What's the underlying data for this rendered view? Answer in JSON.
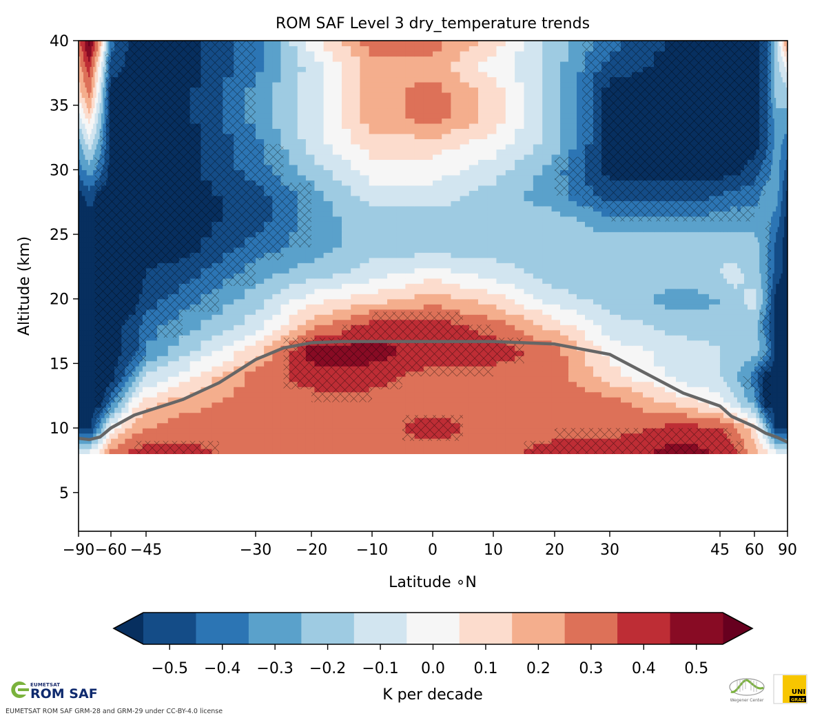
{
  "chart_data": {
    "type": "heatmap",
    "subtype": "filled-contour",
    "title": "ROM SAF Level 3 dry_temperature trends",
    "xlabel": "Latitude $^\\circ$N",
    "xlabel_display": "Latitude ∘N",
    "ylabel": "Altitude (km)",
    "xlim": [
      -90,
      90
    ],
    "ylim": [
      2,
      40
    ],
    "x_scale": "area-weighted (sine-like latitude)",
    "x_ticks": [
      -90,
      -60,
      -45,
      -30,
      -20,
      -10,
      0,
      10,
      20,
      30,
      45,
      60,
      90
    ],
    "x_tick_labels": [
      "−90",
      "−60",
      "−45",
      "−30",
      "−20",
      "−10",
      "0",
      "10",
      "20",
      "30",
      "45",
      "60",
      "90"
    ],
    "y_ticks": [
      5,
      10,
      15,
      20,
      25,
      30,
      35,
      40
    ],
    "y_tick_labels": [
      "5",
      "10",
      "15",
      "20",
      "25",
      "30",
      "35",
      "40"
    ],
    "data_altitude_range_km": [
      8,
      40
    ],
    "grid": false,
    "colorbar": {
      "label": "K per decade",
      "orientation": "horizontal",
      "placement": "bottom",
      "extend": "both",
      "boundaries": [
        -0.55,
        -0.45,
        -0.35,
        -0.25,
        -0.15,
        -0.05,
        0.05,
        0.15,
        0.25,
        0.35,
        0.45,
        0.55
      ],
      "ticks": [
        -0.5,
        -0.4,
        -0.3,
        -0.2,
        -0.1,
        0.0,
        0.1,
        0.2,
        0.3,
        0.4,
        0.5
      ],
      "tick_labels": [
        "−0.5",
        "−0.4",
        "−0.3",
        "−0.2",
        "−0.1",
        "0.0",
        "0.1",
        "0.2",
        "0.3",
        "0.4",
        "0.5"
      ],
      "colors": [
        "#144c87",
        "#2c75b4",
        "#5aa1cb",
        "#9ecbe2",
        "#d2e5f0",
        "#f6f6f6",
        "#fcdccd",
        "#f4ae8d",
        "#dd7158",
        "#be2d35",
        "#880b24"
      ],
      "under_color": "#072f5f",
      "over_color": "#67001f"
    },
    "tropopause_line": {
      "name": "tropopause",
      "color": "#666666",
      "lat": [
        -90,
        -80,
        -70,
        -60,
        -50,
        -40,
        -35,
        -30,
        -25,
        -20,
        -15,
        -10,
        0,
        10,
        20,
        25,
        30,
        35,
        40,
        45,
        50,
        60,
        70,
        80,
        90
      ],
      "alt_km": [
        9.2,
        9.1,
        9.3,
        10.0,
        11.0,
        12.2,
        13.5,
        15.3,
        16.2,
        16.6,
        16.7,
        16.7,
        16.7,
        16.7,
        16.5,
        16.1,
        15.7,
        14.2,
        12.7,
        11.7,
        10.9,
        10.1,
        9.6,
        9.3,
        8.9
      ]
    },
    "trend_field": {
      "description": "Approximate trend values (K/decade) read from filled contours on a coarse grid",
      "lat": [
        -90,
        -80,
        -70,
        -60,
        -50,
        -40,
        -30,
        -20,
        -10,
        0,
        10,
        20,
        30,
        40,
        50,
        60,
        70,
        80,
        90
      ],
      "alt_km": [
        8,
        10,
        12,
        14,
        16,
        18,
        20,
        22,
        24,
        26,
        28,
        30,
        32,
        34,
        36,
        38,
        40
      ],
      "values": [
        [
          -0.1,
          0.0,
          0.1,
          0.3,
          0.4,
          0.4,
          0.3,
          0.3,
          0.3,
          0.3,
          0.3,
          0.4,
          0.4,
          0.5,
          0.4,
          0.2,
          0.1,
          0.0,
          -0.1
        ],
        [
          -0.6,
          -0.6,
          -0.3,
          0.0,
          0.2,
          0.3,
          0.3,
          0.3,
          0.3,
          0.4,
          0.3,
          0.3,
          0.3,
          0.4,
          0.3,
          0.1,
          -0.2,
          -0.6,
          -0.6
        ],
        [
          -0.6,
          -0.6,
          -0.6,
          -0.4,
          0.0,
          0.2,
          0.3,
          0.3,
          0.3,
          0.3,
          0.3,
          0.3,
          0.3,
          0.1,
          -0.1,
          -0.3,
          -0.6,
          -0.6,
          -0.6
        ],
        [
          -0.6,
          -0.6,
          -0.6,
          -0.6,
          -0.3,
          0.0,
          0.3,
          0.4,
          0.4,
          0.3,
          0.3,
          0.3,
          0.1,
          -0.1,
          -0.2,
          -0.4,
          -0.6,
          -0.6,
          -0.6
        ],
        [
          -0.6,
          -0.6,
          -0.6,
          -0.6,
          -0.5,
          -0.2,
          0.1,
          0.5,
          0.5,
          0.4,
          0.4,
          0.3,
          0.0,
          -0.1,
          -0.2,
          -0.2,
          -0.3,
          -0.6,
          -0.6
        ],
        [
          -0.6,
          -0.6,
          -0.6,
          -0.6,
          -0.5,
          -0.3,
          -0.1,
          0.2,
          0.4,
          0.4,
          0.3,
          0.1,
          -0.1,
          -0.2,
          -0.2,
          -0.2,
          -0.4,
          -0.6,
          -0.6
        ],
        [
          -0.6,
          -0.6,
          -0.6,
          -0.6,
          -0.6,
          -0.4,
          -0.2,
          0.0,
          0.1,
          0.2,
          0.1,
          -0.1,
          -0.2,
          -0.3,
          -0.2,
          -0.1,
          -0.3,
          -0.6,
          -0.6
        ],
        [
          -0.6,
          -0.6,
          -0.6,
          -0.6,
          -0.6,
          -0.5,
          -0.3,
          -0.2,
          -0.1,
          0.0,
          -0.1,
          -0.2,
          -0.2,
          -0.2,
          -0.1,
          -0.2,
          -0.3,
          -0.5,
          -0.6
        ],
        [
          -0.6,
          -0.6,
          -0.6,
          -0.6,
          -0.6,
          -0.6,
          -0.4,
          -0.3,
          -0.2,
          -0.2,
          -0.2,
          -0.2,
          -0.2,
          -0.2,
          -0.2,
          -0.2,
          -0.3,
          -0.5,
          -0.6
        ],
        [
          -0.6,
          -0.6,
          -0.6,
          -0.6,
          -0.6,
          -0.6,
          -0.5,
          -0.3,
          -0.2,
          -0.2,
          -0.2,
          -0.2,
          -0.3,
          -0.3,
          -0.3,
          -0.3,
          -0.3,
          -0.4,
          -0.6
        ],
        [
          -0.6,
          -0.5,
          -0.6,
          -0.6,
          -0.6,
          -0.6,
          -0.5,
          -0.3,
          -0.1,
          -0.1,
          -0.2,
          -0.3,
          -0.5,
          -0.5,
          -0.4,
          -0.4,
          -0.3,
          -0.3,
          -0.6
        ],
        [
          -0.4,
          -0.3,
          -0.4,
          -0.6,
          -0.6,
          -0.6,
          -0.4,
          -0.2,
          0.0,
          0.0,
          -0.1,
          -0.3,
          -0.6,
          -0.6,
          -0.6,
          -0.5,
          -0.4,
          -0.3,
          -0.5
        ],
        [
          -0.3,
          -0.1,
          -0.3,
          -0.6,
          -0.6,
          -0.6,
          -0.4,
          -0.1,
          0.1,
          0.1,
          0.0,
          -0.2,
          -0.6,
          -0.6,
          -0.6,
          -0.6,
          -0.5,
          -0.3,
          -0.4
        ],
        [
          -0.1,
          0.1,
          -0.2,
          -0.6,
          -0.6,
          -0.6,
          -0.3,
          -0.1,
          0.2,
          0.3,
          0.1,
          -0.2,
          -0.6,
          -0.6,
          -0.6,
          -0.6,
          -0.5,
          -0.3,
          -0.3
        ],
        [
          0.1,
          0.3,
          -0.1,
          -0.6,
          -0.6,
          -0.6,
          -0.3,
          -0.1,
          0.2,
          0.3,
          0.1,
          -0.2,
          -0.6,
          -0.6,
          -0.6,
          -0.6,
          -0.5,
          -0.2,
          -0.2
        ],
        [
          0.2,
          0.4,
          0.0,
          -0.5,
          -0.6,
          -0.6,
          -0.4,
          -0.1,
          0.2,
          0.2,
          0.0,
          -0.2,
          -0.5,
          -0.6,
          -0.6,
          -0.6,
          -0.5,
          -0.2,
          0.0
        ],
        [
          0.3,
          0.6,
          0.2,
          -0.4,
          -0.6,
          -0.6,
          -0.4,
          0.0,
          0.3,
          0.3,
          0.1,
          -0.2,
          -0.4,
          -0.6,
          -0.6,
          -0.6,
          -0.5,
          -0.2,
          0.3
        ]
      ]
    },
    "hatching": {
      "meaning": "statistically significant",
      "pattern": "cross-hatch"
    }
  },
  "footer": {
    "romsaf_small": "EUMETSAT",
    "romsaf_name": "ROM SAF",
    "license": "EUMETSAT ROM SAF GRM-28 and GRM-29 under CC-BY-4.0 license",
    "wegener_label": "Wegener Center",
    "unigraz_line1": "UNI",
    "unigraz_line2": "GRAZ"
  }
}
